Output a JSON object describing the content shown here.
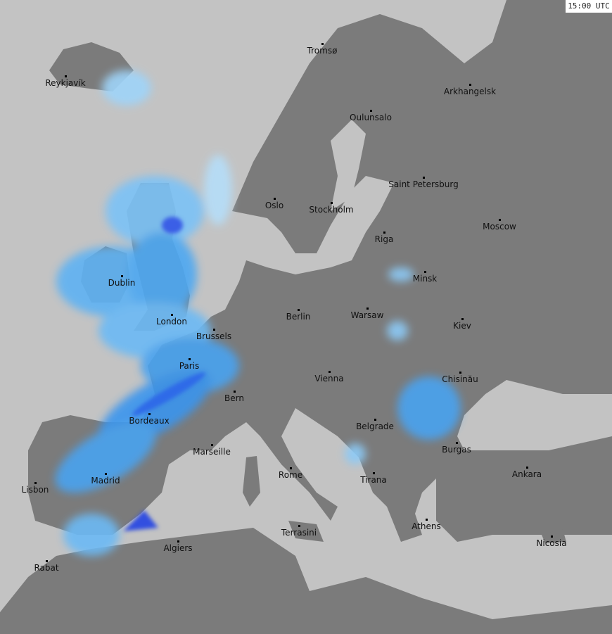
{
  "timestamp": "15:00 UTC",
  "colors": {
    "sea": "#c3c3c3",
    "land": "#7b7b7b",
    "radar_light": "#a8d8f8",
    "radar_mid": "#3aa0f0",
    "radar_heavy": "#2a50e0"
  },
  "cities": [
    {
      "name": "Tromsø",
      "lon": 18.96,
      "lat": 69.65
    },
    {
      "name": "Arkhangelsk",
      "lon": 40.52,
      "lat": 64.54
    },
    {
      "name": "Reykjavík",
      "lon": -21.9,
      "lat": 64.13
    },
    {
      "name": "Oulunsalo",
      "lon": 25.4,
      "lat": 64.93
    },
    {
      "name": "Saint Petersburg",
      "lon": 30.3,
      "lat": 59.94
    },
    {
      "name": "Oslo",
      "lon": 10.75,
      "lat": 59.91
    },
    {
      "name": "Stockholm",
      "lon": 18.07,
      "lat": 59.33
    },
    {
      "name": "Moscow",
      "lon": 37.62,
      "lat": 55.75
    },
    {
      "name": "Riga",
      "lon": 24.1,
      "lat": 56.95
    },
    {
      "name": "Minsk",
      "lon": 27.56,
      "lat": 53.9
    },
    {
      "name": "Dublin",
      "lon": -6.26,
      "lat": 53.35
    },
    {
      "name": "Berlin",
      "lon": 13.4,
      "lat": 52.52
    },
    {
      "name": "Warsaw",
      "lon": 21.01,
      "lat": 52.23
    },
    {
      "name": "London",
      "lon": -0.13,
      "lat": 51.5
    },
    {
      "name": "Kiev",
      "lon": 30.52,
      "lat": 50.45
    },
    {
      "name": "Brussels",
      "lon": 4.35,
      "lat": 50.85
    },
    {
      "name": "Paris",
      "lon": 2.35,
      "lat": 48.86
    },
    {
      "name": "Vienna",
      "lon": 16.37,
      "lat": 48.21
    },
    {
      "name": "Chisinău",
      "lon": 28.86,
      "lat": 47.01
    },
    {
      "name": "Bern",
      "lon": 7.45,
      "lat": 46.95
    },
    {
      "name": "Bordeaux",
      "lon": -0.58,
      "lat": 44.84
    },
    {
      "name": "Belgrade",
      "lon": 20.46,
      "lat": 44.79
    },
    {
      "name": "Marseille",
      "lon": 5.37,
      "lat": 43.3
    },
    {
      "name": "Burgas",
      "lon": 27.47,
      "lat": 42.5
    },
    {
      "name": "Ankara",
      "lon": 32.85,
      "lat": 39.93
    },
    {
      "name": "Rome",
      "lon": 12.5,
      "lat": 41.9
    },
    {
      "name": "Madrid",
      "lon": -3.7,
      "lat": 40.42
    },
    {
      "name": "Tirana",
      "lon": 19.82,
      "lat": 41.33
    },
    {
      "name": "Lisbon",
      "lon": -9.14,
      "lat": 38.72
    },
    {
      "name": "Athens",
      "lon": 23.73,
      "lat": 37.98
    },
    {
      "name": "Terrasini",
      "lon": 13.08,
      "lat": 38.15
    },
    {
      "name": "Nicosia",
      "lon": 33.38,
      "lat": 35.19
    },
    {
      "name": "Algiers",
      "lon": 3.06,
      "lat": 36.75
    },
    {
      "name": "Rabat",
      "lon": -6.84,
      "lat": 34.02
    }
  ]
}
